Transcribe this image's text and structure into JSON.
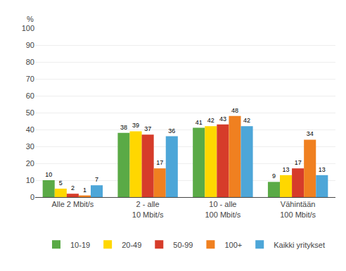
{
  "chart_data": {
    "type": "bar",
    "ylabel": "%",
    "categories": [
      "Alle 2 Mbit/s",
      "2 - alle\n10 Mbit/s",
      "10 - alle\n100 Mbit/s",
      "Vähintään\n100 Mbit/s"
    ],
    "series": [
      {
        "name": "10-19",
        "color": "#5aaa46",
        "values": [
          10,
          38,
          41,
          9
        ]
      },
      {
        "name": "20-49",
        "color": "#ffd700",
        "values": [
          5,
          39,
          42,
          13
        ]
      },
      {
        "name": "50-99",
        "color": "#d63c2a",
        "values": [
          2,
          37,
          43,
          17
        ]
      },
      {
        "name": "100+",
        "color": "#f08020",
        "values": [
          1,
          17,
          48,
          34
        ]
      },
      {
        "name": "Kaikki yritykset",
        "color": "#4da6d8",
        "values": [
          7,
          36,
          42,
          13
        ]
      }
    ],
    "ylim": [
      0,
      100
    ],
    "yticks": [
      0,
      10,
      20,
      30,
      40,
      50,
      60,
      70,
      80,
      90,
      100
    ],
    "grid": true,
    "data_labels": true,
    "legend": "bottom"
  }
}
